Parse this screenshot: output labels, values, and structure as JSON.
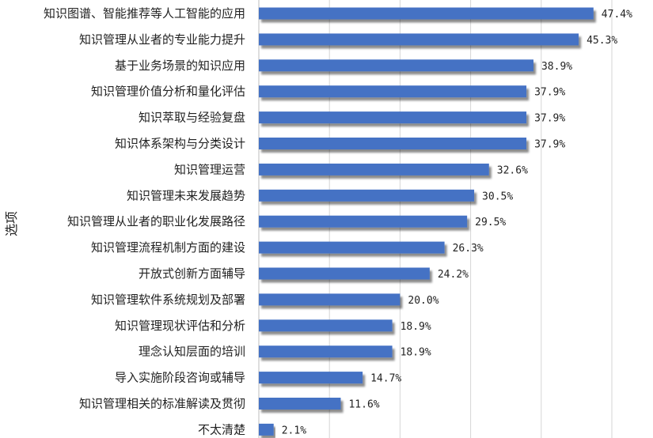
{
  "chart_data": {
    "type": "bar",
    "orientation": "horizontal",
    "ylabel": "选项",
    "xlim": [
      0,
      50
    ],
    "grid": true,
    "bar_color": "#4472c4",
    "categories": [
      "知识图谱、智能推荐等人工智能的应用",
      "知识管理从业者的专业能力提升",
      "基于业务场景的知识应用",
      "知识管理价值分析和量化评估",
      "知识萃取与经验复盘",
      "知识体系架构与分类设计",
      "知识管理运营",
      "知识管理未来发展趋势",
      "知识管理从业者的职业化发展路径",
      "知识管理流程机制方面的建设",
      "开放式创新方面辅导",
      "知识管理软件系统规划及部署",
      "知识管理现状评估和分析",
      "理念认知层面的培训",
      "导入实施阶段咨询或辅导",
      "知识管理相关的标准解读及贯彻",
      "不太清楚"
    ],
    "values": [
      47.4,
      45.3,
      38.9,
      37.9,
      37.9,
      37.9,
      32.6,
      30.5,
      29.5,
      26.3,
      24.2,
      20.0,
      18.9,
      18.9,
      14.7,
      11.6,
      2.1
    ],
    "value_labels": [
      "47.4%",
      "45.3%",
      "38.9%",
      "37.9%",
      "37.9%",
      "37.9%",
      "32.6%",
      "30.5%",
      "29.5%",
      "26.3%",
      "24.2%",
      "20.0%",
      "18.9%",
      "18.9%",
      "14.7%",
      "11.6%",
      "2.1%"
    ]
  }
}
